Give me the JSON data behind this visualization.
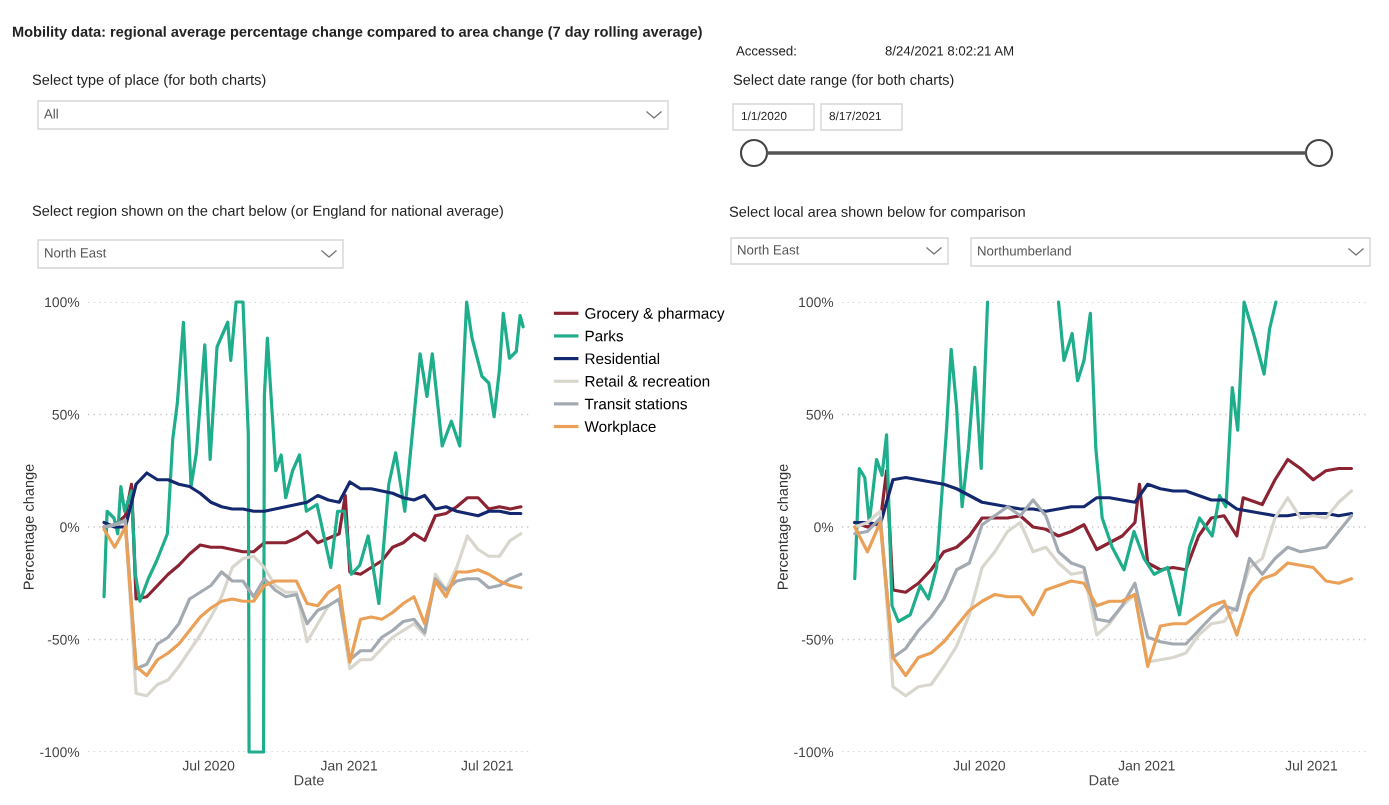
{
  "chart_data": [
    {
      "type": "line",
      "title": "Mobility data: regional average percentage change compared to area change (7 day rolling average)",
      "xlabel": "Date",
      "ylabel": "Percentage change",
      "annotations": [
        "Accessed:",
        "8/24/2021 8:02:21 AM",
        "Select type of place (for both charts)",
        "All",
        "Select date range (for both charts)",
        "1/1/2020",
        "8/17/2021",
        "Select region shown on the chart below (or England for national average)",
        "North East"
      ],
      "x": [
        "2020-02-15",
        "2020-02-29",
        "2020-03-14",
        "2020-03-28",
        "2020-04-11",
        "2020-04-25",
        "2020-05-09",
        "2020-05-23",
        "2020-06-06",
        "2020-06-20",
        "2020-07-04",
        "2020-07-18",
        "2020-08-01",
        "2020-08-15",
        "2020-08-29",
        "2020-09-12",
        "2020-09-26",
        "2020-10-10",
        "2020-10-24",
        "2020-11-07",
        "2020-11-21",
        "2020-12-05",
        "2020-12-19",
        "2021-01-02",
        "2021-01-16",
        "2021-01-30",
        "2021-02-13",
        "2021-02-27",
        "2021-03-13",
        "2021-03-27",
        "2021-04-10",
        "2021-04-24",
        "2021-05-08",
        "2021-05-22",
        "2021-06-05",
        "2021-06-19",
        "2021-07-03",
        "2021-07-17",
        "2021-07-31",
        "2021-08-14"
      ],
      "series": [
        {
          "name": "Grocery & pharmacy",
          "color": "#8b2332",
          "x": [
            "2020-02-15",
            "2020-02-29",
            "2020-03-14",
            "2020-03-22",
            "2020-03-28",
            "2020-04-11",
            "2020-04-25",
            "2020-05-09",
            "2020-05-23",
            "2020-06-06",
            "2020-06-20",
            "2020-07-04",
            "2020-07-18",
            "2020-08-01",
            "2020-08-15",
            "2020-08-29",
            "2020-09-12",
            "2020-09-26",
            "2020-10-10",
            "2020-10-24",
            "2020-11-07",
            "2020-11-21",
            "2020-12-05",
            "2020-12-19",
            "2020-12-27",
            "2021-01-02",
            "2021-01-16",
            "2021-01-30",
            "2021-02-13",
            "2021-02-27",
            "2021-03-13",
            "2021-03-27",
            "2021-04-10",
            "2021-04-24",
            "2021-05-08",
            "2021-05-22",
            "2021-06-05",
            "2021-06-19",
            "2021-07-03",
            "2021-07-17",
            "2021-07-31",
            "2021-08-14"
          ],
          "values": [
            0,
            1,
            5,
            19,
            -32,
            -31,
            -26,
            -21,
            -17,
            -12,
            -8,
            -9,
            -9,
            -10,
            -11,
            -11,
            -7,
            -7,
            -7,
            -5,
            -2,
            -7,
            -5,
            -3,
            14,
            -20,
            -21,
            -18,
            -15,
            -9,
            -7,
            -3,
            -6,
            5,
            6,
            9,
            13,
            13,
            8,
            9,
            8,
            9
          ]
        },
        {
          "name": "Parks",
          "color": "#1fae8c",
          "x": [
            "2020-02-15",
            "2020-02-19",
            "2020-02-28",
            "2020-03-04",
            "2020-03-08",
            "2020-03-13",
            "2020-03-22",
            "2020-03-27",
            "2020-04-02",
            "2020-04-13",
            "2020-04-24",
            "2020-05-01",
            "2020-05-08",
            "2020-05-15",
            "2020-05-21",
            "2020-05-29",
            "2020-06-08",
            "2020-06-15",
            "2020-06-26",
            "2020-07-03",
            "2020-07-12",
            "2020-07-26",
            "2020-07-30",
            "2020-08-06",
            "2020-08-15",
            "2020-08-22",
            "2020-08-23",
            "2020-09-11",
            "2020-09-12",
            "2020-09-16",
            "2020-09-27",
            "2020-10-04",
            "2020-10-10",
            "2020-10-19",
            "2020-10-28",
            "2020-11-06",
            "2020-11-20",
            "2020-12-08",
            "2020-12-17",
            "2020-12-26",
            "2021-01-04",
            "2021-01-15",
            "2021-01-26",
            "2021-02-09",
            "2021-02-22",
            "2021-03-03",
            "2021-03-15",
            "2021-04-04",
            "2021-04-13",
            "2021-04-20",
            "2021-05-03",
            "2021-05-15",
            "2021-05-26",
            "2021-06-04",
            "2021-06-11",
            "2021-06-24",
            "2021-07-03",
            "2021-07-10",
            "2021-07-17",
            "2021-07-22",
            "2021-07-30",
            "2021-08-08",
            "2021-08-13",
            "2021-08-17"
          ],
          "values": [
            -31,
            7,
            4,
            -3,
            18,
            7,
            16,
            -21,
            -33,
            -23,
            -15,
            -9,
            -3,
            39,
            55,
            91,
            18,
            33,
            81,
            30,
            80,
            91,
            74,
            100,
            100,
            41,
            -100,
            -100,
            58,
            84,
            25,
            32,
            13,
            25,
            32,
            7,
            10,
            -18,
            7,
            7,
            -21,
            -17,
            -4,
            -34,
            19,
            33,
            7,
            77,
            58,
            77,
            36,
            47,
            36,
            100,
            84,
            67,
            64,
            49,
            70,
            95,
            75,
            78,
            94,
            89
          ]
        },
        {
          "name": "Residential",
          "color": "#13286e",
          "values": [
            2,
            0,
            0,
            19,
            24,
            21,
            21,
            19,
            18,
            15,
            11,
            9,
            8,
            8,
            7,
            7,
            8,
            9,
            10,
            11,
            14,
            12,
            11,
            20,
            17,
            17,
            16,
            15,
            13,
            12,
            14,
            8,
            9,
            7,
            6,
            5,
            7,
            7,
            6,
            6
          ]
        },
        {
          "name": "Retail & recreation",
          "color": "#d9d7cd",
          "values": [
            0,
            1,
            2,
            -74,
            -75,
            -70,
            -68,
            -62,
            -55,
            -48,
            -40,
            -31,
            -18,
            -14,
            -13,
            -18,
            -26,
            -29,
            -29,
            -51,
            -43,
            -35,
            -32,
            -63,
            -59,
            -59,
            -54,
            -49,
            -46,
            -43,
            -48,
            -21,
            -28,
            -18,
            -4,
            -10,
            -13,
            -13,
            -6,
            -3
          ]
        },
        {
          "name": "Transit stations",
          "color": "#a3aab2",
          "values": [
            0,
            1,
            3,
            -63,
            -61,
            -52,
            -49,
            -43,
            -32,
            -29,
            -26,
            -20,
            -24,
            -24,
            -31,
            -23,
            -28,
            -31,
            -30,
            -43,
            -37,
            -35,
            -32,
            -59,
            -55,
            -55,
            -49,
            -46,
            -42,
            -41,
            -47,
            -23,
            -28,
            -24,
            -23,
            -23,
            -27,
            -26,
            -23,
            -21
          ]
        },
        {
          "name": "Workplace",
          "color": "#eaa057",
          "values": [
            -1,
            -9,
            0,
            -62,
            -66,
            -59,
            -56,
            -52,
            -46,
            -40,
            -36,
            -33,
            -32,
            -33,
            -33,
            -26,
            -24,
            -24,
            -24,
            -34,
            -35,
            -29,
            -26,
            -60,
            -41,
            -40,
            -41,
            -38,
            -34,
            -31,
            -43,
            -24,
            -31,
            -20,
            -20,
            -19,
            -21,
            -24,
            -26,
            -27
          ]
        }
      ],
      "xlim": [
        "2020-01-25",
        "2021-08-26"
      ],
      "xticks": [
        {
          "value": "2020-07-01",
          "label": "Jul 2020"
        },
        {
          "value": "2021-01-01",
          "label": "Jan 2021"
        },
        {
          "value": "2021-07-01",
          "label": "Jul 2021"
        }
      ],
      "ylim": [
        -100,
        100
      ],
      "yticks": [
        {
          "value": -100,
          "label": "-100%"
        },
        {
          "value": -50,
          "label": "-50%"
        },
        {
          "value": 0,
          "label": "0%"
        },
        {
          "value": 50,
          "label": "50%"
        },
        {
          "value": 100,
          "label": "100%"
        }
      ],
      "grid": "y",
      "legend": "right"
    },
    {
      "type": "line",
      "xlabel": "Date",
      "ylabel": "Percentage change",
      "annotations": [
        "Select local area shown below for comparison",
        "North East",
        "Northumberland"
      ],
      "x": [
        "2020-02-15",
        "2020-02-29",
        "2020-03-14",
        "2020-03-28",
        "2020-04-11",
        "2020-04-25",
        "2020-05-09",
        "2020-05-23",
        "2020-06-06",
        "2020-06-20",
        "2020-07-04",
        "2020-07-18",
        "2020-08-01",
        "2020-08-15",
        "2020-08-29",
        "2020-09-12",
        "2020-09-26",
        "2020-10-10",
        "2020-10-24",
        "2020-11-07",
        "2020-11-21",
        "2020-12-05",
        "2020-12-19",
        "2021-01-02",
        "2021-01-16",
        "2021-01-30",
        "2021-02-13",
        "2021-02-27",
        "2021-03-13",
        "2021-03-27",
        "2021-04-10",
        "2021-04-24",
        "2021-05-08",
        "2021-05-22",
        "2021-06-05",
        "2021-06-19",
        "2021-07-03",
        "2021-07-17",
        "2021-07-31",
        "2021-08-14"
      ],
      "series": [
        {
          "color": "#8b2332",
          "x": [
            "2020-02-15",
            "2020-02-29",
            "2020-03-14",
            "2020-03-21",
            "2020-03-28",
            "2020-04-11",
            "2020-04-25",
            "2020-05-09",
            "2020-05-23",
            "2020-06-06",
            "2020-06-20",
            "2020-07-04",
            "2020-07-18",
            "2020-08-01",
            "2020-08-15",
            "2020-08-29",
            "2020-09-12",
            "2020-09-26",
            "2020-10-10",
            "2020-10-24",
            "2020-11-07",
            "2020-11-21",
            "2020-12-05",
            "2020-12-19",
            "2020-12-24",
            "2021-01-02",
            "2021-01-16",
            "2021-01-30",
            "2021-02-13",
            "2021-02-27",
            "2021-03-13",
            "2021-03-27",
            "2021-04-10",
            "2021-04-17",
            "2021-04-24",
            "2021-05-08",
            "2021-05-22",
            "2021-06-05",
            "2021-06-19",
            "2021-07-03",
            "2021-07-17",
            "2021-07-31",
            "2021-08-14"
          ],
          "values": [
            2,
            0,
            2,
            25,
            -28,
            -29,
            -25,
            -19,
            -11,
            -9,
            -4,
            4,
            4,
            4,
            5,
            0,
            -1,
            -4,
            -2,
            1,
            -10,
            -7,
            -4,
            2,
            19,
            -16,
            -19,
            -18,
            -19,
            -4,
            4,
            5,
            -4,
            13,
            12,
            10,
            21,
            30,
            26,
            21,
            25,
            26,
            26
          ]
        },
        {
          "color": "#1fae8c",
          "x": [
            "2020-02-15",
            "2020-02-20",
            "2020-02-26",
            "2020-03-02",
            "2020-03-10",
            "2020-03-16",
            "2020-03-21",
            "2020-03-27",
            "2020-04-03",
            "2020-04-16",
            "2020-04-27",
            "2020-05-06",
            "2020-05-15",
            "2020-05-26",
            "2020-05-31",
            "2020-06-06",
            "2020-06-12",
            "2020-06-19",
            "2020-06-26",
            "2020-07-03",
            "2020-07-10",
            "2020-08-15",
            "2020-09-26",
            "2020-10-02",
            "2020-10-11",
            "2020-10-17",
            "2020-10-24",
            "2020-10-31",
            "2020-11-06",
            "2020-11-13",
            "2020-11-24",
            "2020-12-07",
            "2020-12-18",
            "2020-12-29",
            "2021-01-09",
            "2021-01-24",
            "2021-02-06",
            "2021-02-17",
            "2021-02-28",
            "2021-03-14",
            "2021-03-22",
            "2021-03-29",
            "2021-04-05",
            "2021-04-11",
            "2021-04-18",
            "2021-04-29",
            "2021-05-10",
            "2021-05-16",
            "2021-05-23"
          ],
          "values": [
            -23,
            26,
            22,
            2,
            30,
            23,
            41,
            -35,
            -42,
            -39,
            -26,
            -32,
            -18,
            44,
            79,
            53,
            9,
            35,
            71,
            26,
            100,
            null,
            100,
            74,
            86,
            65,
            74,
            95,
            35,
            4,
            -9,
            -19,
            -2,
            -14,
            -21,
            -18,
            -39,
            -9,
            4,
            -4,
            14,
            9,
            62,
            43,
            100,
            85,
            68,
            88,
            100
          ]
        },
        {
          "color": "#13286e",
          "values": [
            2,
            2,
            1,
            21,
            22,
            21,
            20,
            19,
            17,
            14,
            11,
            10,
            9,
            8,
            8,
            7,
            8,
            9,
            9,
            13,
            13,
            12,
            11,
            19,
            17,
            16,
            16,
            14,
            12,
            12,
            8,
            7,
            6,
            5,
            5,
            6,
            6,
            6,
            5,
            6
          ]
        },
        {
          "color": "#d9d7cd",
          "values": [
            0,
            2,
            7,
            -71,
            -75,
            -71,
            -70,
            -62,
            -53,
            -39,
            -18,
            -11,
            -2,
            2,
            -11,
            -9,
            -16,
            -21,
            -20,
            -48,
            -43,
            -35,
            -30,
            -60,
            -59,
            -58,
            -56,
            -48,
            -43,
            -42,
            -35,
            -18,
            -14,
            4,
            13,
            4,
            5,
            4,
            11,
            16
          ]
        },
        {
          "color": "#a3aab2",
          "values": [
            -3,
            -2,
            4,
            -58,
            -54,
            -46,
            -40,
            -32,
            -19,
            -16,
            1,
            5,
            9,
            5,
            12,
            5,
            -11,
            -16,
            -18,
            -41,
            -42,
            -35,
            -25,
            -49,
            -51,
            -52,
            -52,
            -46,
            -40,
            -35,
            -37,
            -14,
            -21,
            -14,
            -9,
            -11,
            -10,
            -9,
            -2,
            5
          ]
        },
        {
          "color": "#eaa057",
          "values": [
            0,
            -11,
            2,
            -58,
            -66,
            -58,
            -56,
            -51,
            -44,
            -37,
            -33,
            -30,
            -31,
            -31,
            -39,
            -28,
            -26,
            -24,
            -25,
            -35,
            -33,
            -33,
            -30,
            -62,
            -44,
            -43,
            -43,
            -39,
            -35,
            -33,
            -48,
            -30,
            -23,
            -21,
            -16,
            -17,
            -18,
            -24,
            -25,
            -23
          ]
        }
      ],
      "xlim": [
        "2020-02-01",
        "2021-08-30"
      ],
      "xticks": [
        {
          "value": "2020-07-01",
          "label": "Jul 2020"
        },
        {
          "value": "2021-01-01",
          "label": "Jan 2021"
        },
        {
          "value": "2021-07-01",
          "label": "Jul 2021"
        }
      ],
      "ylim": [
        -100,
        100
      ],
      "yticks": [
        {
          "value": -100,
          "label": "-100%"
        },
        {
          "value": -50,
          "label": "-50%"
        },
        {
          "value": 0,
          "label": "0%"
        },
        {
          "value": 50,
          "label": "50%"
        },
        {
          "value": 100,
          "label": "100%"
        }
      ],
      "grid": "y"
    }
  ]
}
